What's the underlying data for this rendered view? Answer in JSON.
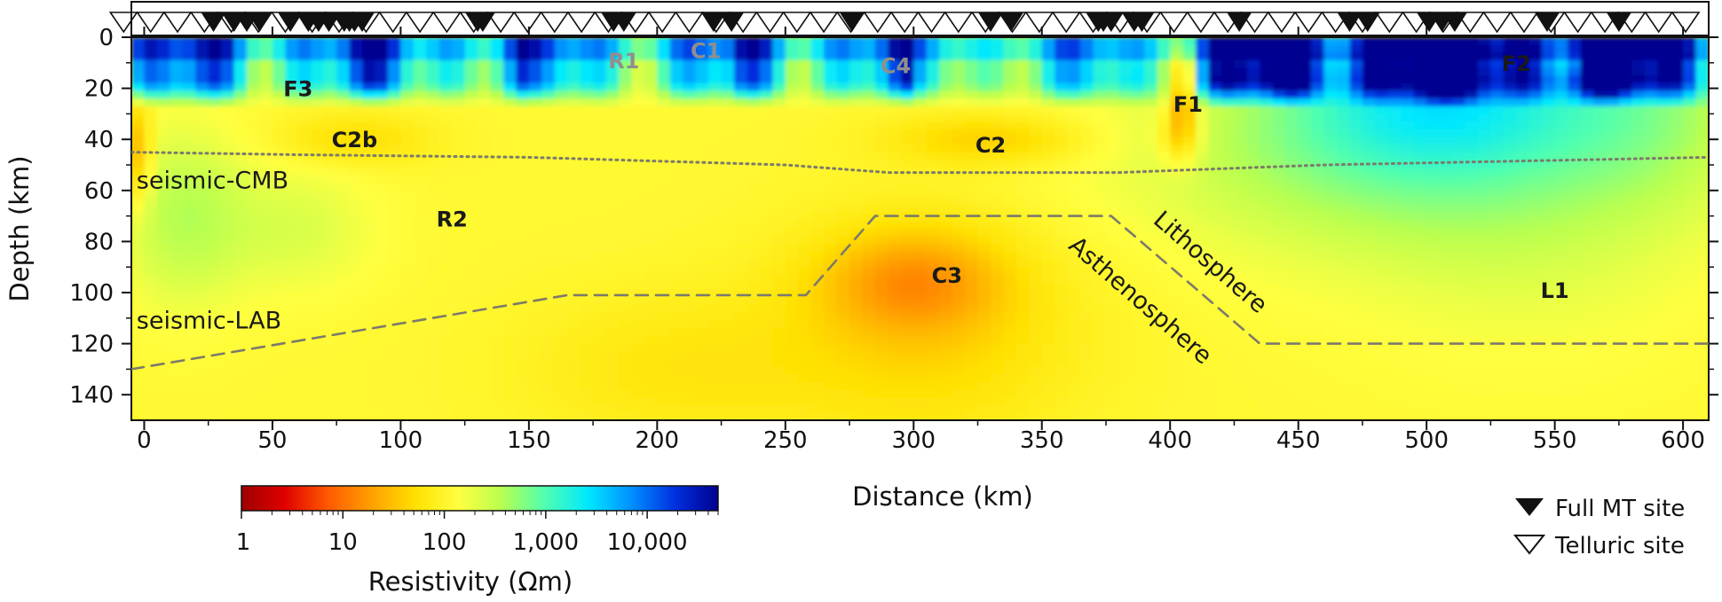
{
  "chart_data": {
    "type": "heatmap",
    "title": "",
    "xlabel": "Distance (km)",
    "ylabel": "Depth (km)",
    "xlim": [
      -5,
      610
    ],
    "ylim": [
      150,
      0
    ],
    "x_ticks": [
      "0",
      "50",
      "100",
      "150",
      "200",
      "250",
      "300",
      "350",
      "400",
      "450",
      "500",
      "550",
      "600"
    ],
    "y_ticks": [
      "0",
      "20",
      "40",
      "60",
      "80",
      "100",
      "120",
      "140"
    ],
    "color_scale": {
      "label": "Resistivity (Ωm)",
      "scale": "log",
      "range": [
        1,
        50000
      ],
      "tick_labels": [
        "1",
        "10",
        "100",
        "1,000",
        "10,000"
      ],
      "tick_values": [
        1,
        10,
        100,
        1000,
        10000
      ],
      "colors": [
        "#9e0000",
        "#e00000",
        "#ff5a00",
        "#ffa000",
        "#ffe000",
        "#ffff40",
        "#b8ff50",
        "#50ffb0",
        "#00e8ff",
        "#0090ff",
        "#0030e0",
        "#000090"
      ]
    },
    "interfaces": [
      {
        "name": "seismic-CMB",
        "style": "dotted",
        "points": [
          [
            -5,
            45
          ],
          [
            60,
            46
          ],
          [
            150,
            47
          ],
          [
            250,
            50
          ],
          [
            290,
            53
          ],
          [
            380,
            53
          ],
          [
            460,
            50
          ],
          [
            610,
            47
          ]
        ]
      },
      {
        "name": "seismic-LAB",
        "style": "dashed",
        "points": [
          [
            -5,
            130
          ],
          [
            165,
            101
          ],
          [
            258,
            101
          ],
          [
            285,
            70
          ],
          [
            377,
            70
          ],
          [
            435,
            120
          ],
          [
            610,
            120
          ]
        ]
      }
    ],
    "anomaly_labels": [
      {
        "text": "R1",
        "x": 187,
        "y": 9,
        "style": "grey"
      },
      {
        "text": "C1",
        "x": 219,
        "y": 5,
        "style": "grey"
      },
      {
        "text": "C4",
        "x": 293,
        "y": 11,
        "style": "grey"
      },
      {
        "text": "F3",
        "x": 60,
        "y": 20,
        "style": "bold"
      },
      {
        "text": "F2",
        "x": 535,
        "y": 10,
        "style": "bold"
      },
      {
        "text": "F1",
        "x": 407,
        "y": 26,
        "style": "bold"
      },
      {
        "text": "C2b",
        "x": 82,
        "y": 40,
        "style": "bold"
      },
      {
        "text": "C2",
        "x": 330,
        "y": 42,
        "style": "bold"
      },
      {
        "text": "R2",
        "x": 120,
        "y": 71,
        "style": "bold"
      },
      {
        "text": "C3",
        "x": 313,
        "y": 93,
        "style": "bold"
      },
      {
        "text": "L1",
        "x": 550,
        "y": 99,
        "style": "bold"
      },
      {
        "text": "seismic-CMB",
        "x": -3,
        "y": 56,
        "style": "plain"
      },
      {
        "text": "seismic-LAB",
        "x": -3,
        "y": 111,
        "style": "plain"
      },
      {
        "text": "Lithosphere",
        "x": 395,
        "y": 70,
        "style": "rot"
      },
      {
        "text": "Asthenosphere",
        "x": 362,
        "y": 80,
        "style": "rot"
      }
    ],
    "sites": {
      "full_mt_km": [
        27,
        35,
        40,
        45,
        57,
        64,
        68,
        72,
        78,
        80,
        82,
        85,
        130,
        132,
        183,
        187,
        222,
        229,
        276,
        330,
        338,
        372,
        374,
        377,
        386,
        389,
        427,
        470,
        477,
        501,
        506,
        511,
        547,
        575
      ],
      "telluric_start_km": -8,
      "telluric_end_km": 607,
      "telluric_spacing_km": 10.5
    }
  },
  "legend": {
    "full_mt_label": "Full MT site",
    "telluric_label": "Telluric site"
  }
}
